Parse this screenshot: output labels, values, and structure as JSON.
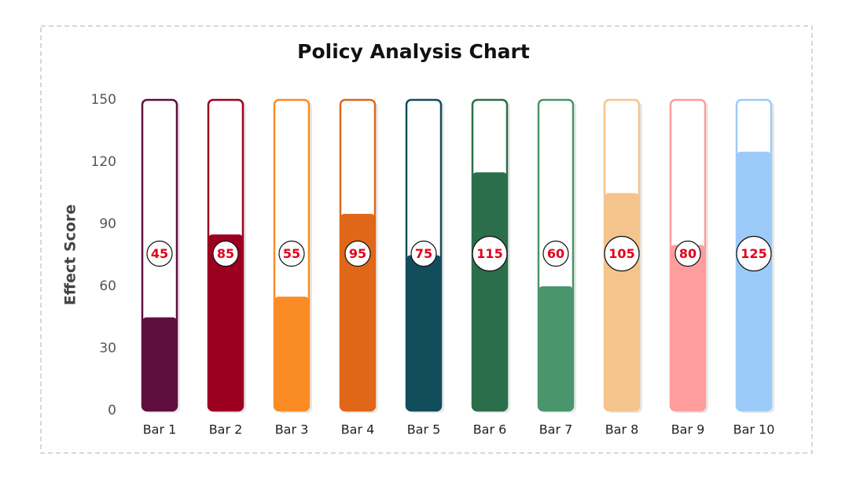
{
  "chart_data": {
    "type": "bar",
    "title": "Policy Analysis Chart",
    "y_label": "Effect Score",
    "categories": [
      "Bar 1",
      "Bar 2",
      "Bar 3",
      "Bar 4",
      "Bar 5",
      "Bar 6",
      "Bar 7",
      "Bar 8",
      "Bar 9",
      "Bar 10"
    ],
    "values": [
      45,
      85,
      55,
      95,
      75,
      115,
      60,
      105,
      80,
      125
    ],
    "colors": [
      "#5e0f3e",
      "#9b0020",
      "#fb8c25",
      "#e06718",
      "#124d5c",
      "#2b6e4a",
      "#4a956b",
      "#f5c48c",
      "#ff9d9d",
      "#9ccbf9"
    ],
    "ylim": [
      0,
      150
    ],
    "yticks": [
      0,
      30,
      60,
      90,
      120,
      150
    ],
    "grid": false
  }
}
